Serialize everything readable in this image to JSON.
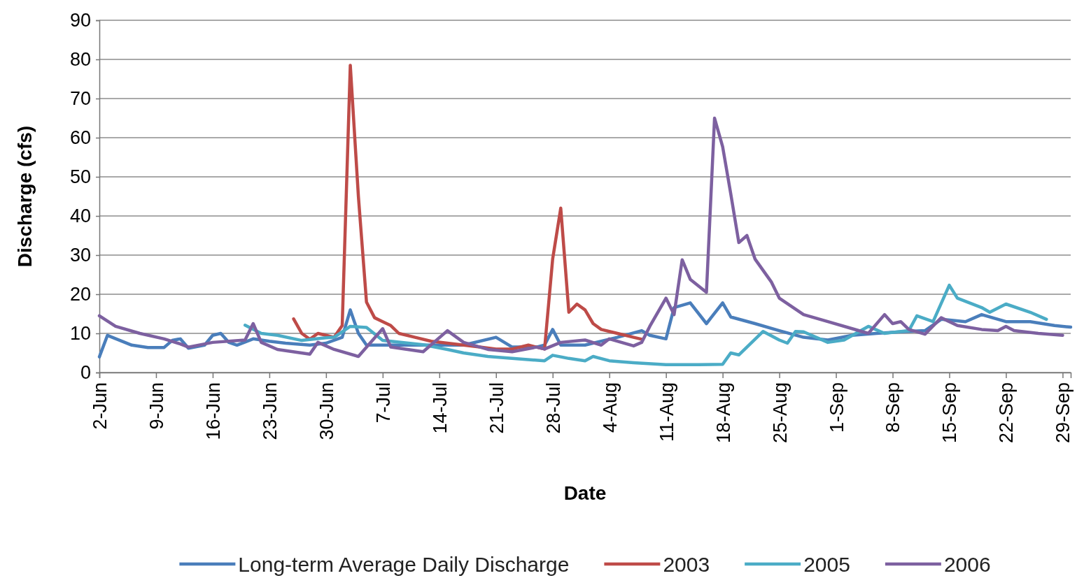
{
  "chart_data": {
    "type": "line",
    "xlabel": "Date",
    "ylabel": "Discharge (cfs)",
    "xlim": [
      "--06-02",
      "--09-30"
    ],
    "xticks": [
      {
        "value": "--06-02",
        "label": "2-Jun"
      },
      {
        "value": "--06-09",
        "label": "9-Jun"
      },
      {
        "value": "--06-16",
        "label": "16-Jun"
      },
      {
        "value": "--06-23",
        "label": "23-Jun"
      },
      {
        "value": "--06-30",
        "label": "30-Jun"
      },
      {
        "value": "--07-07",
        "label": "7-Jul"
      },
      {
        "value": "--07-14",
        "label": "14-Jul"
      },
      {
        "value": "--07-21",
        "label": "21-Jul"
      },
      {
        "value": "--07-28",
        "label": "28-Jul"
      },
      {
        "value": "--08-04",
        "label": "4-Aug"
      },
      {
        "value": "--08-11",
        "label": "11-Aug"
      },
      {
        "value": "--08-18",
        "label": "18-Aug"
      },
      {
        "value": "--08-25",
        "label": "25-Aug"
      },
      {
        "value": "--09-01",
        "label": "1-Sep"
      },
      {
        "value": "--09-08",
        "label": "8-Sep"
      },
      {
        "value": "--09-15",
        "label": "15-Sep"
      },
      {
        "value": "--09-22",
        "label": "22-Sep"
      },
      {
        "value": "--09-29",
        "label": "29-Sep"
      }
    ],
    "ylim": [
      0,
      90
    ],
    "yticks": [
      0,
      10,
      20,
      30,
      40,
      50,
      60,
      70,
      80,
      90
    ],
    "grid": "y",
    "legend": "bottom",
    "marker": "none",
    "line_style": "solid",
    "series": [
      {
        "name": "Long-term Average Daily Discharge",
        "color": "#4a7ebb",
        "x": [
          "--06-02",
          "--06-03",
          "--06-06",
          "--06-08",
          "--06-10",
          "--06-11",
          "--06-12",
          "--06-13",
          "--06-15",
          "--06-16",
          "--06-17",
          "--06-18",
          "--06-19",
          "--06-21",
          "--06-23",
          "--06-25",
          "--06-28",
          "--06-30",
          "--07-02",
          "--07-03",
          "--07-04",
          "--07-05",
          "--07-07",
          "--07-12",
          "--07-17",
          "--07-21",
          "--07-23",
          "--07-26",
          "--07-27",
          "--07-28",
          "--07-29",
          "--08-01",
          "--08-04",
          "--08-05",
          "--08-08",
          "--08-09",
          "--08-11",
          "--08-12",
          "--08-14",
          "--08-16",
          "--08-18",
          "--08-19",
          "--08-22",
          "--08-25",
          "--08-28",
          "--08-31",
          "--09-03",
          "--09-06",
          "--09-09",
          "--09-12",
          "--09-14",
          "--09-17",
          "--09-19",
          "--09-22",
          "--09-25",
          "--09-28",
          "--09-30"
        ],
        "values": [
          4,
          9.5,
          7,
          6.4,
          6.4,
          8.2,
          8.6,
          6.2,
          7,
          9.5,
          10,
          7.7,
          7,
          8.6,
          8,
          7.5,
          7,
          7.5,
          9,
          16,
          10,
          7,
          7,
          7,
          7,
          9,
          6.5,
          6.5,
          7,
          11,
          7,
          7,
          8.5,
          9,
          10.7,
          9.5,
          8.6,
          16.6,
          17.8,
          12.5,
          17.8,
          14.2,
          12.5,
          10.7,
          9,
          8.3,
          9.5,
          10,
          10.4,
          10.7,
          13.6,
          13,
          14.8,
          13,
          13,
          12,
          11.6
        ]
      },
      {
        "name": "2003",
        "color": "#be4b48",
        "x": [
          "--06-26",
          "--06-27",
          "--06-28",
          "--06-29",
          "--06-30",
          "--07-01",
          "--07-02",
          "--07-03",
          "--07-04",
          "--07-05",
          "--07-06",
          "--07-07",
          "--07-08",
          "--07-09",
          "--07-11",
          "--07-13",
          "--07-15",
          "--07-17",
          "--07-19",
          "--07-21",
          "--07-23",
          "--07-25",
          "--07-26",
          "--07-27",
          "--07-28",
          "--07-29",
          "--07-30",
          "--07-31",
          "--08-01",
          "--08-02",
          "--08-03",
          "--08-05",
          "--08-07",
          "--08-08"
        ],
        "values": [
          13.7,
          10,
          8.5,
          10,
          9.5,
          9,
          12,
          78.5,
          45,
          18,
          14,
          13,
          12,
          10,
          9,
          8,
          7.5,
          7,
          6.5,
          6,
          6,
          7,
          6.5,
          6,
          29,
          42,
          15.4,
          17.5,
          16,
          12.5,
          11,
          10,
          9,
          8.5
        ]
      },
      {
        "name": "2005",
        "color": "#4bacc6",
        "x": [
          "--06-20",
          "--06-22",
          "--06-24",
          "--06-27",
          "--06-30",
          "--07-01",
          "--07-03",
          "--07-05",
          "--07-07",
          "--07-12",
          "--07-15",
          "--07-17",
          "--07-20",
          "--07-23",
          "--07-27",
          "--07-28",
          "--07-30",
          "--08-01",
          "--08-02",
          "--08-04",
          "--08-07",
          "--08-11",
          "--08-15",
          "--08-18",
          "--08-19",
          "--08-20",
          "--08-23",
          "--08-25",
          "--08-26",
          "--08-27",
          "--08-28",
          "--08-31",
          "--09-02",
          "--09-05",
          "--09-07",
          "--09-10",
          "--09-11",
          "--09-13",
          "--09-15",
          "--09-16",
          "--09-19",
          "--09-20",
          "--09-22",
          "--09-25",
          "--09-27"
        ],
        "values": [
          12.1,
          10,
          9.5,
          8.2,
          8.9,
          9,
          11.8,
          11.5,
          8.2,
          7.1,
          5.9,
          5,
          4.1,
          3.6,
          3,
          4.4,
          3.6,
          3,
          4.1,
          3,
          2.5,
          2,
          2,
          2.1,
          5,
          4.5,
          10.5,
          8.3,
          7.5,
          10.5,
          10.4,
          7.7,
          8.3,
          11.8,
          10,
          10.7,
          14.5,
          13,
          22.3,
          19,
          16.6,
          15.4,
          17.5,
          15.4,
          13.6
        ]
      },
      {
        "name": "2006",
        "color": "#7d60a0",
        "x": [
          "--06-02",
          "--06-04",
          "--06-07",
          "--06-10",
          "--06-12",
          "--06-13",
          "--06-16",
          "--06-20",
          "--06-21",
          "--06-22",
          "--06-24",
          "--06-28",
          "--06-29",
          "--07-01",
          "--07-04",
          "--07-07",
          "--07-08",
          "--07-12",
          "--07-15",
          "--07-17",
          "--07-20",
          "--07-23",
          "--07-26",
          "--07-27",
          "--07-29",
          "--08-01",
          "--08-03",
          "--08-04",
          "--08-07",
          "--08-08",
          "--08-09",
          "--08-11",
          "--08-12",
          "--08-13",
          "--08-14",
          "--08-16",
          "--08-17",
          "--08-18",
          "--08-19",
          "--08-20",
          "--08-21",
          "--08-22",
          "--08-24",
          "--08-25",
          "--08-28",
          "--08-31",
          "--09-03",
          "--09-05",
          "--09-07",
          "--09-08",
          "--09-09",
          "--09-10",
          "--09-12",
          "--09-14",
          "--09-16",
          "--09-19",
          "--09-21",
          "--09-22",
          "--09-23",
          "--09-26",
          "--09-29"
        ],
        "values": [
          14.5,
          11.8,
          10,
          8.6,
          7.3,
          6.5,
          7.7,
          8.3,
          12.5,
          7.7,
          5.9,
          4.7,
          7.7,
          5.9,
          4.1,
          11.2,
          6.5,
          5.3,
          10.7,
          7.7,
          5.9,
          5.3,
          6.5,
          6,
          7.7,
          8.3,
          7,
          8.6,
          6.8,
          7.7,
          11.8,
          19,
          14.8,
          28.8,
          23.8,
          20.5,
          65,
          57.7,
          45.7,
          33.2,
          35,
          29,
          23.2,
          19,
          14.8,
          13,
          11.2,
          10,
          14.8,
          12.5,
          13,
          11,
          9.8,
          14,
          12,
          11,
          10.7,
          11.8,
          10.7,
          10,
          9.5
        ]
      }
    ]
  }
}
